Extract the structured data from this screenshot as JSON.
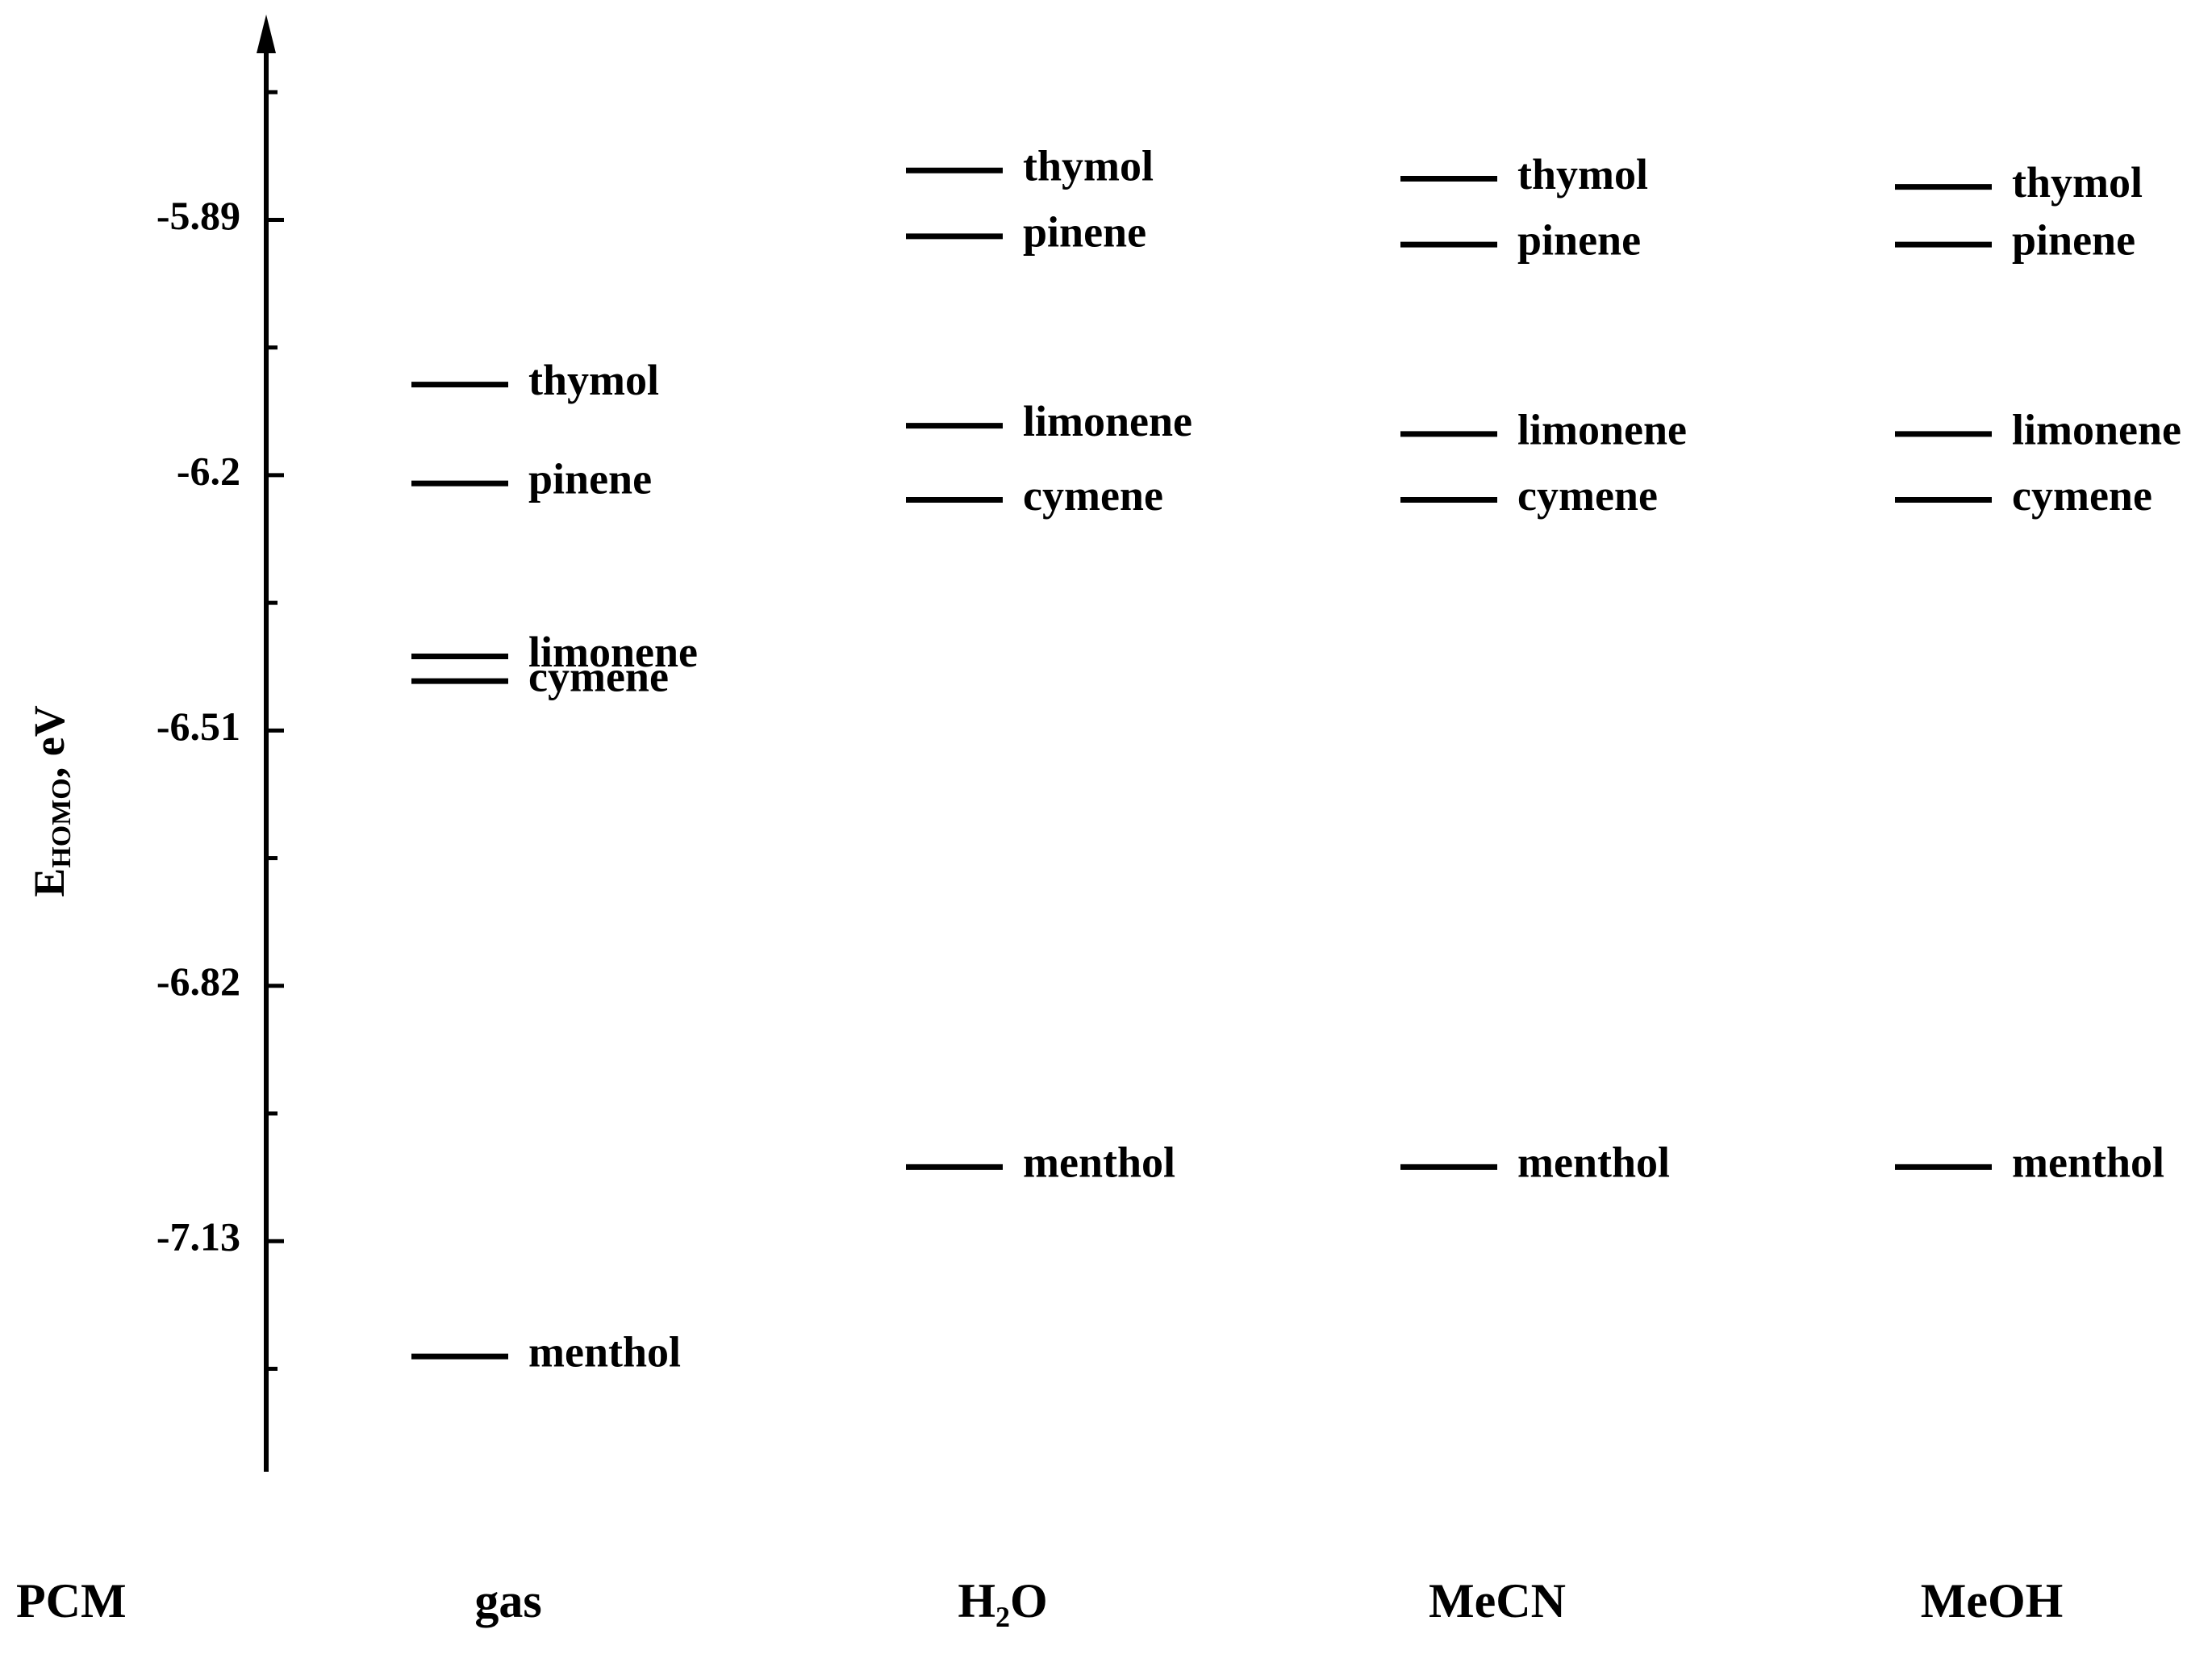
{
  "chart_data": {
    "type": "energy-levels",
    "ylabel": {
      "main": "E",
      "subscript": "HOMO",
      "suffix": ", eV"
    },
    "xlabel": "PCM",
    "categories": [
      "gas",
      "H₂O",
      "MeCN",
      "MeOH"
    ],
    "series": [
      {
        "name": "thymol",
        "color": "#000000",
        "values": [
          -6.09,
          -5.83,
          -5.84,
          -5.85
        ]
      },
      {
        "name": "pinene",
        "color": "#000000",
        "values": [
          -6.21,
          -5.91,
          -5.92,
          -5.92
        ]
      },
      {
        "name": "limonene",
        "color": "#000000",
        "values": [
          -6.42,
          -6.14,
          -6.15,
          -6.15
        ]
      },
      {
        "name": "cymene",
        "color": "#000000",
        "values": [
          -6.45,
          -6.23,
          -6.23,
          -6.23
        ]
      },
      {
        "name": "menthol",
        "color": "#000000",
        "values": [
          -7.27,
          -7.04,
          -7.04,
          -7.04
        ]
      }
    ],
    "ylim": [
      -7.41,
      -5.65
    ],
    "yticks": [
      -5.89,
      -6.2,
      -6.51,
      -6.82,
      -7.13
    ],
    "minor_yticks": [
      -5.735,
      -6.045,
      -6.355,
      -6.665,
      -6.975,
      -7.285
    ]
  }
}
